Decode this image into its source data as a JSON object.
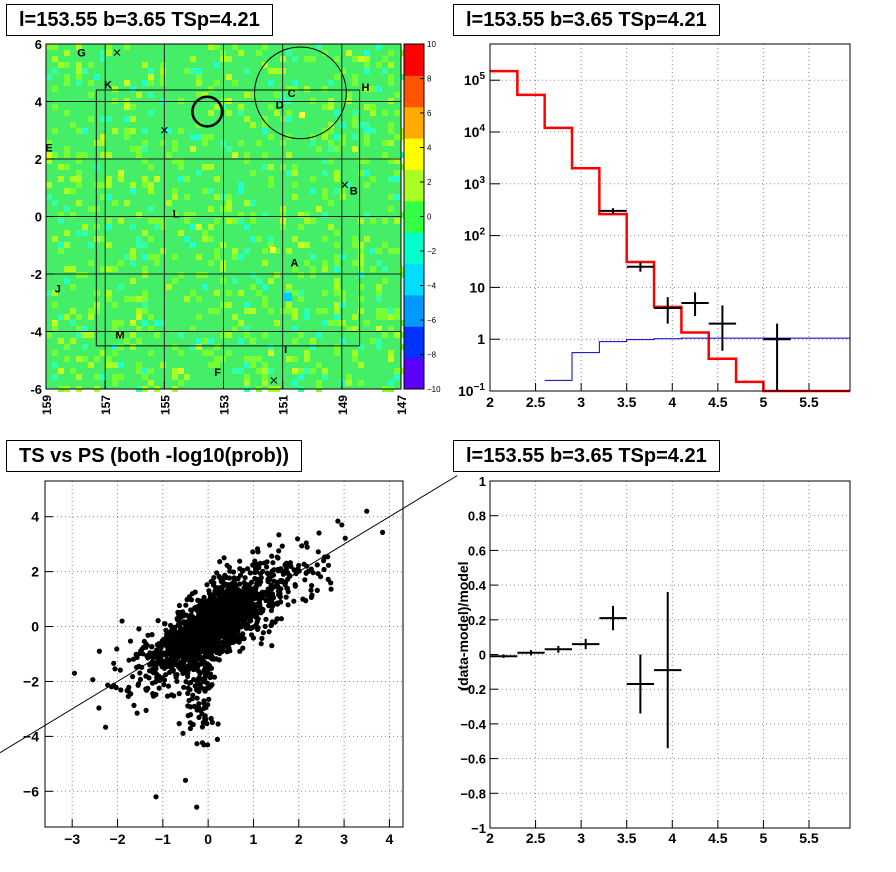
{
  "chart_data": [
    {
      "type": "heatmap",
      "title": "l=153.55 b=3.65 TSp=4.21",
      "xlim": [
        159,
        147
      ],
      "ylim": [
        -6,
        6
      ],
      "x_ticks": [
        "159",
        "157",
        "155",
        "153",
        "151",
        "149",
        "147"
      ],
      "y_ticks": [
        "6",
        "4",
        "2",
        "0",
        "-2",
        "-4",
        "-6"
      ],
      "z_range": [
        -10,
        10
      ],
      "z_ticks": [
        "10",
        "8",
        "6",
        "4",
        "2",
        "0",
        "−2",
        "−4",
        "−6",
        "−8",
        "−10"
      ],
      "colorscale": [
        "#5a00ff",
        "#0033ff",
        "#0099ff",
        "#00ddff",
        "#00ffcc",
        "#33ff44",
        "#aaff22",
        "#ffff00",
        "#ffaa00",
        "#ff5500",
        "#ff0000"
      ],
      "background_color": "#44ee66",
      "source_labels": [
        {
          "name": "G",
          "l": 157.8,
          "b": 5.7
        },
        {
          "name": "K",
          "l": 156.9,
          "b": 4.6
        },
        {
          "name": "C",
          "l": 150.7,
          "b": 4.3
        },
        {
          "name": "H",
          "l": 148.2,
          "b": 4.5
        },
        {
          "name": "D",
          "l": 151.1,
          "b": 3.9
        },
        {
          "name": "E",
          "l": 158.9,
          "b": 2.4
        },
        {
          "name": "B",
          "l": 148.6,
          "b": 0.9
        },
        {
          "name": "L",
          "l": 154.6,
          "b": 0.1
        },
        {
          "name": "A",
          "l": 150.6,
          "b": -1.6
        },
        {
          "name": "J",
          "l": 158.6,
          "b": -2.5
        },
        {
          "name": "M",
          "l": 156.5,
          "b": -4.1
        },
        {
          "name": "I",
          "l": 150.9,
          "b": -4.6
        },
        {
          "name": "F",
          "l": 153.2,
          "b": -5.4
        }
      ],
      "markers": [
        {
          "l": 156.6,
          "b": 5.7
        },
        {
          "l": 155.0,
          "b": 3.0
        },
        {
          "l": 148.9,
          "b": 1.1
        },
        {
          "l": 151.3,
          "b": -5.7
        }
      ],
      "circles": [
        {
          "l": 153.55,
          "b": 3.65,
          "r": 0.5,
          "bold": true
        },
        {
          "l": 150.4,
          "b": 4.3,
          "r": 1.55,
          "bold": false
        }
      ],
      "roi_box": {
        "l": [
          157.3,
          148.4
        ],
        "b": [
          -4.5,
          4.4
        ]
      }
    },
    {
      "type": "line",
      "title": "l=153.55 b=3.65 TSp=4.21",
      "xlim": [
        2,
        5.95
      ],
      "ylim": [
        0.1,
        500000
      ],
      "yscale": "log",
      "x_ticks": [
        "2",
        "2.5",
        "3",
        "3.5",
        "4",
        "4.5",
        "5",
        "5.5"
      ],
      "y_ticks": [
        "10^5",
        "10^4",
        "10^3",
        "10^2",
        "10",
        "1",
        "10^−1"
      ],
      "series": [
        {
          "style": "histogram",
          "color": "#ff0000",
          "edges": [
            2.0,
            2.3,
            2.6,
            2.9,
            3.2,
            3.5,
            3.8,
            4.1,
            4.4,
            4.7,
            5.0,
            5.95
          ],
          "values": [
            150000,
            52000,
            12000,
            2000,
            260,
            31,
            4.2,
            1.35,
            0.42,
            0.15,
            0.1
          ]
        },
        {
          "style": "histogram",
          "color": "#0000cc",
          "edges": [
            2.6,
            2.9,
            3.2,
            3.5,
            3.8,
            4.1,
            5.95
          ],
          "values": [
            0.16,
            0.55,
            0.9,
            0.98,
            1.02,
            1.05
          ]
        },
        {
          "style": "points",
          "color": "#000000",
          "x": [
            3.35,
            3.65,
            3.95,
            4.25,
            4.55,
            5.15
          ],
          "xerr": [
            0.15,
            0.15,
            0.15,
            0.15,
            0.15,
            0.15
          ],
          "y": [
            300,
            25,
            4,
            5,
            2,
            1
          ],
          "ylow": [
            260,
            20,
            2,
            2.8,
            0.6,
            0.1
          ],
          "yhigh": [
            340,
            31,
            6.5,
            8,
            4.5,
            2
          ]
        }
      ]
    },
    {
      "type": "scatter",
      "title": "TS vs PS (both -log10(prob))",
      "xlim": [
        -3.6,
        4.3
      ],
      "ylim": [
        -7.3,
        5.3
      ],
      "x_ticks": [
        "−3",
        "−2",
        "−1",
        "0",
        "1",
        "2",
        "3",
        "4"
      ],
      "y_ticks": [
        "4",
        "2",
        "0",
        "−2",
        "−4",
        "−6"
      ],
      "reference_line": {
        "slope": 1,
        "intercept": 0
      }
    },
    {
      "type": "scatter",
      "title": "l=153.55 b=3.65 TSp=4.21",
      "ylabel": "(data-model)/model",
      "xlim": [
        2,
        5.95
      ],
      "ylim": [
        -1,
        1
      ],
      "x_ticks": [
        "2",
        "2.5",
        "3",
        "3.5",
        "4",
        "4.5",
        "5",
        "5.5"
      ],
      "y_ticks": [
        "1",
        "0.8",
        "0.6",
        "0.4",
        "0.2",
        "0",
        "−0.2",
        "−0.4",
        "−0.6",
        "−0.8",
        "−1"
      ],
      "x": [
        2.15,
        2.45,
        2.75,
        3.05,
        3.35,
        3.65,
        3.95
      ],
      "xerr": [
        0.15,
        0.15,
        0.15,
        0.15,
        0.15,
        0.15,
        0.15
      ],
      "y": [
        -0.01,
        0.01,
        0.03,
        0.06,
        0.21,
        -0.17,
        -0.09
      ],
      "yerr": [
        0.01,
        0.015,
        0.02,
        0.03,
        0.07,
        0.17,
        0.45
      ]
    }
  ]
}
